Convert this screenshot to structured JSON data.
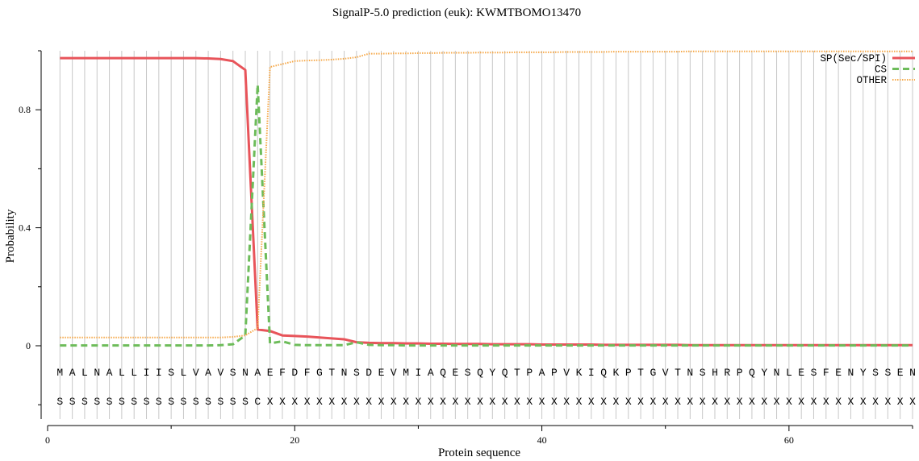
{
  "chart_data": {
    "type": "line",
    "title": "SignalP-5.0 prediction (euk):  KWMTBOMO13470",
    "xlabel": "Protein sequence",
    "ylabel": "Probability",
    "xlim": [
      0,
      70
    ],
    "ylim": [
      -0.25,
      1.0
    ],
    "x_ticks": [
      0,
      20,
      40,
      60
    ],
    "x_tick_labels": [
      "0",
      "20",
      "40",
      "60"
    ],
    "x_minor_ticks": [
      10,
      30,
      50,
      70
    ],
    "y_ticks": [
      0,
      0.4,
      0.8
    ],
    "y_tick_labels": [
      "0",
      "0.4",
      "0.8"
    ],
    "y_minor_ticks": [
      -0.2,
      0.2,
      0.6,
      1.0
    ],
    "grid": "vertical lines at each residue position",
    "legend_position": "top-right",
    "sequence": "MALNALLIISLVAVSNAEFDFGTNSDEVMIAQESQYQTPAPVKIQKPTGVTNSHRPQYNLESFENYSSEN",
    "labels": "SSSSSSSSSSSSSSSSCXXXXXXXXXXXXXXXXXXXXXXXXXXXXXXXXXXXXXXXXXXXXXXXXXXXXX",
    "x": [
      1,
      2,
      3,
      4,
      5,
      6,
      7,
      8,
      9,
      10,
      11,
      12,
      13,
      14,
      15,
      16,
      17,
      18,
      19,
      20,
      21,
      22,
      23,
      24,
      25,
      26,
      27,
      28,
      29,
      30,
      31,
      32,
      33,
      34,
      35,
      36,
      37,
      38,
      39,
      40,
      41,
      42,
      43,
      44,
      45,
      46,
      47,
      48,
      49,
      50,
      51,
      52,
      53,
      54,
      55,
      56,
      57,
      58,
      59,
      60,
      61,
      62,
      63,
      64,
      65,
      66,
      67,
      68,
      69,
      70
    ],
    "series": [
      {
        "name": "SP(Sec/SPI)",
        "color": "#e8545a",
        "style": "solid",
        "values": [
          0.975,
          0.975,
          0.975,
          0.975,
          0.975,
          0.975,
          0.975,
          0.975,
          0.975,
          0.975,
          0.975,
          0.975,
          0.974,
          0.972,
          0.965,
          0.935,
          0.055,
          0.05,
          0.035,
          0.033,
          0.031,
          0.028,
          0.025,
          0.022,
          0.012,
          0.01,
          0.009,
          0.009,
          0.008,
          0.008,
          0.007,
          0.007,
          0.006,
          0.006,
          0.006,
          0.005,
          0.005,
          0.005,
          0.005,
          0.004,
          0.004,
          0.004,
          0.004,
          0.004,
          0.003,
          0.003,
          0.003,
          0.003,
          0.003,
          0.003,
          0.003,
          0.002,
          0.002,
          0.002,
          0.002,
          0.002,
          0.002,
          0.002,
          0.002,
          0.002,
          0.002,
          0.002,
          0.002,
          0.002,
          0.002,
          0.002,
          0.002,
          0.002,
          0.002,
          0.002
        ]
      },
      {
        "name": "CS",
        "color": "#6dbc5a",
        "style": "dashed",
        "values": [
          0.001,
          0.001,
          0.001,
          0.001,
          0.001,
          0.001,
          0.001,
          0.001,
          0.001,
          0.001,
          0.001,
          0.001,
          0.001,
          0.002,
          0.005,
          0.035,
          0.885,
          0.008,
          0.015,
          0.003,
          0.002,
          0.002,
          0.002,
          0.002,
          0.012,
          0.003,
          0.002,
          0.002,
          0.001,
          0.001,
          0.001,
          0.001,
          0.001,
          0.001,
          0.001,
          0.001,
          0.001,
          0.001,
          0.001,
          0.001,
          0.001,
          0.001,
          0.001,
          0.001,
          0.001,
          0.001,
          0.001,
          0.001,
          0.001,
          0.001,
          0.001,
          0.001,
          0.001,
          0.001,
          0.001,
          0.001,
          0.001,
          0.001,
          0.001,
          0.001,
          0.001,
          0.001,
          0.001,
          0.001,
          0.001,
          0.001,
          0.001,
          0.001,
          0.001,
          0.001
        ]
      },
      {
        "name": "OTHER",
        "color": "#f6a94a",
        "style": "dotted",
        "values": [
          0.028,
          0.028,
          0.028,
          0.028,
          0.028,
          0.028,
          0.028,
          0.028,
          0.028,
          0.028,
          0.028,
          0.028,
          0.028,
          0.028,
          0.03,
          0.035,
          0.06,
          0.945,
          0.955,
          0.965,
          0.967,
          0.968,
          0.97,
          0.973,
          0.978,
          0.99,
          0.99,
          0.991,
          0.991,
          0.992,
          0.992,
          0.993,
          0.993,
          0.993,
          0.994,
          0.994,
          0.994,
          0.995,
          0.995,
          0.995,
          0.995,
          0.996,
          0.996,
          0.996,
          0.996,
          0.997,
          0.997,
          0.997,
          0.997,
          0.997,
          0.997,
          0.998,
          0.998,
          0.998,
          0.998,
          0.998,
          0.998,
          0.998,
          0.998,
          0.998,
          0.998,
          0.998,
          0.998,
          0.998,
          0.998,
          0.998,
          0.998,
          0.998,
          0.998,
          0.998
        ]
      }
    ]
  }
}
